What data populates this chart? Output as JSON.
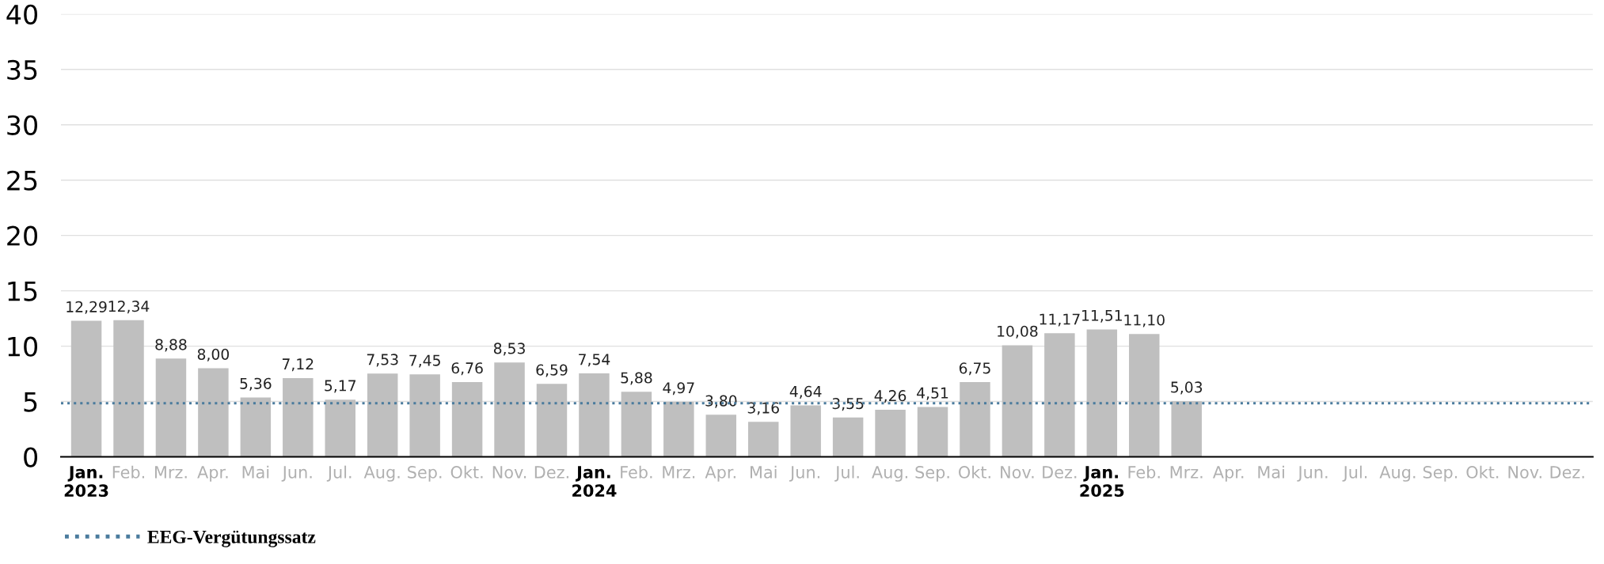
{
  "chart_data": {
    "type": "bar",
    "categories": [
      "Jan.\n2023",
      "Feb.",
      "Mrz.",
      "Apr.",
      "Mai",
      "Jun.",
      "Jul.",
      "Aug.",
      "Sep.",
      "Okt.",
      "Nov.",
      "Dez.",
      "Jan.\n2024",
      "Feb.",
      "Mrz.",
      "Apr.",
      "Mai",
      "Jun.",
      "Jul.",
      "Aug.",
      "Sep.",
      "Okt.",
      "Nov.",
      "Dez.",
      "Jan.\n2025",
      "Feb.",
      "Mrz.",
      "Apr.",
      "Mai",
      "Jun.",
      "Jul.",
      "Aug.",
      "Sep.",
      "Okt.",
      "Nov.",
      "Dez."
    ],
    "values": [
      12.29,
      12.34,
      8.88,
      8.0,
      5.36,
      7.12,
      5.17,
      7.53,
      7.45,
      6.76,
      8.53,
      6.59,
      7.54,
      5.88,
      4.97,
      3.8,
      3.16,
      4.64,
      3.55,
      4.26,
      4.51,
      6.75,
      10.08,
      11.17,
      11.51,
      11.1,
      5.03,
      null,
      null,
      null,
      null,
      null,
      null,
      null,
      null,
      null
    ],
    "value_labels": [
      "12,29",
      "12,34",
      "8,88",
      "8,00",
      "5,36",
      "7,12",
      "5,17",
      "7,53",
      "7,45",
      "6,76",
      "8,53",
      "6,59",
      "7,54",
      "5,88",
      "4,97",
      "3,80",
      "3,16",
      "4,64",
      "3,55",
      "4,26",
      "4,51",
      "6,75",
      "10,08",
      "11,17",
      "11,51",
      "11,10",
      "5,03",
      null,
      null,
      null,
      null,
      null,
      null,
      null,
      null,
      null
    ],
    "color": "#bfbfbf",
    "ylim": [
      0,
      40
    ],
    "yticks": [
      0,
      5,
      10,
      15,
      20,
      25,
      30,
      35,
      40
    ],
    "grid": "y",
    "ref_lines": [
      {
        "axis": "y",
        "value": 4.85,
        "label": "EEG-Vergütungssatz",
        "color": "#4a7b9d",
        "line_style": "dotted"
      }
    ],
    "legend": "bottom left"
  }
}
